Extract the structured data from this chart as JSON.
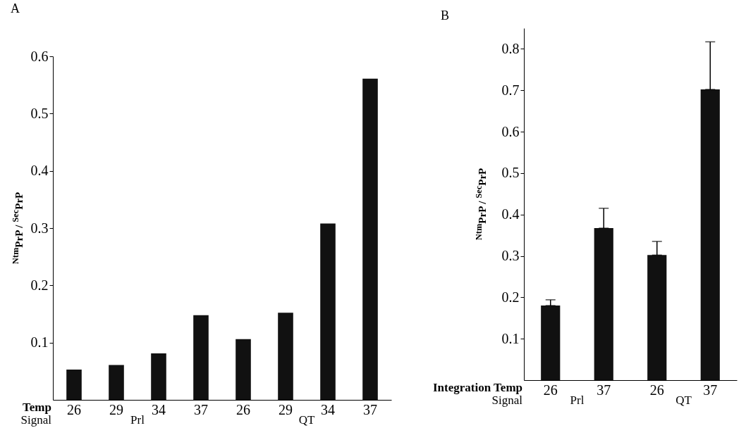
{
  "chart_data": [
    {
      "type": "bar",
      "title": "A",
      "ylabel": "$^{Ntm}$PrP / $^{Sec}$PrP",
      "categories": [
        "26",
        "29",
        "34",
        "37",
        "26",
        "29",
        "34",
        "37"
      ],
      "values": [
        0.053,
        0.061,
        0.081,
        0.148,
        0.106,
        0.152,
        0.308,
        0.561
      ],
      "color": "#111111",
      "ylim": [
        0,
        0.6
      ],
      "yticks": [
        0.1,
        0.2,
        0.3,
        0.4,
        0.5,
        0.6
      ],
      "annotations": [
        "Temp",
        "Signal",
        "Prl",
        "QT"
      ]
    },
    {
      "type": "bar",
      "title": "B",
      "ylabel": "$^{Ntm}$PrP / $^{Sec}$PrP",
      "categories": [
        "26",
        "37",
        "26",
        "37"
      ],
      "values": [
        0.18,
        0.367,
        0.302,
        0.702
      ],
      "errors": [
        [
          0.18,
          0.194
        ],
        [
          0.367,
          0.415
        ],
        [
          0.302,
          0.335
        ],
        [
          0.702,
          0.817
        ]
      ],
      "color": "#111111",
      "ylim": [
        0,
        0.85
      ],
      "yticks": [
        0.1,
        0.2,
        0.3,
        0.4,
        0.5,
        0.6,
        0.7,
        0.8
      ],
      "annotations": [
        "Integration Temp",
        "Signal",
        "Prl",
        "QT"
      ]
    }
  ]
}
